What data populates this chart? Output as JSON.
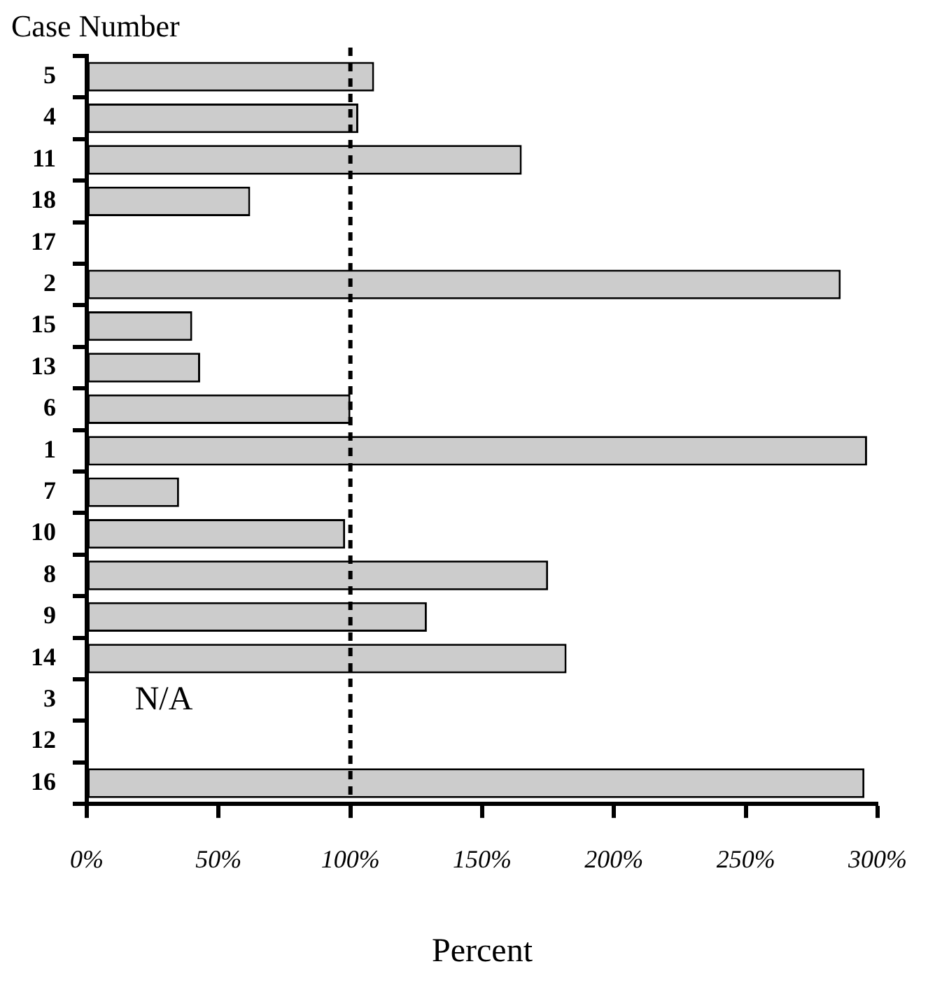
{
  "chart_data": {
    "type": "bar",
    "orientation": "horizontal",
    "ylabel": "Case Number",
    "xlabel": "Percent",
    "categories": [
      "5",
      "4",
      "11",
      "18",
      "17",
      "2",
      "15",
      "13",
      "6",
      "1",
      "7",
      "10",
      "8",
      "9",
      "14",
      "3",
      "12",
      "16"
    ],
    "values": [
      109,
      103,
      165,
      62,
      null,
      286,
      40,
      43,
      100,
      296,
      35,
      98,
      175,
      129,
      182,
      null,
      null,
      295
    ],
    "color": "#cccccc",
    "xlim": [
      0,
      300
    ],
    "xticks": [
      {
        "value": 0,
        "label": "0%"
      },
      {
        "value": 50,
        "label": "50%"
      },
      {
        "value": 100,
        "label": "100%"
      },
      {
        "value": 150,
        "label": "150%"
      },
      {
        "value": 200,
        "label": "200%"
      },
      {
        "value": 250,
        "label": "250%"
      },
      {
        "value": 300,
        "label": "300%"
      }
    ],
    "ref_lines": [
      {
        "axis": "x",
        "value": 100,
        "line_style": "dashed",
        "color": "#000000"
      }
    ],
    "annotations": [
      "N/A"
    ],
    "grid": false,
    "legend": false
  }
}
